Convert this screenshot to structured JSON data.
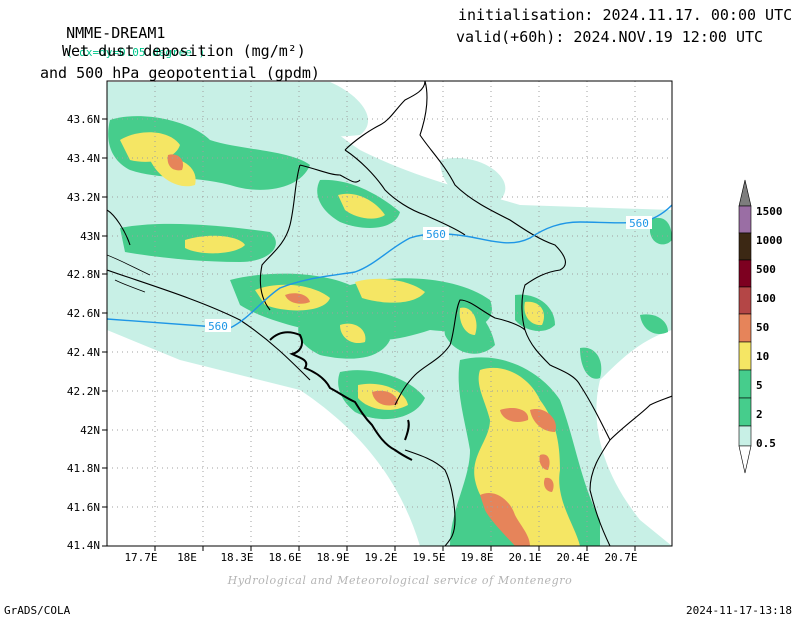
{
  "header": {
    "model": "NMME-DREAM1",
    "resolution": "( dx=dy=0.05 degree )",
    "title_line1": "Wet dust deposition (mg/m²)",
    "title_line2": "and 500 hPa geopotential (gpdm)",
    "init_label": "initialisation: 2024.11.17. 00:00 UTC",
    "valid_label": "valid(+60h): 2024.NOV.19 12:00 UTC"
  },
  "map": {
    "lon_ticks": [
      "17.7E",
      "18E",
      "18.3E",
      "18.6E",
      "18.9E",
      "19.2E",
      "19.5E",
      "19.8E",
      "20.1E",
      "20.4E",
      "20.7E"
    ],
    "lat_ticks": [
      "41.4N",
      "41.6N",
      "41.8N",
      "42N",
      "42.2N",
      "42.4N",
      "42.6N",
      "42.8N",
      "43N",
      "43.2N",
      "43.4N",
      "43.6N"
    ],
    "contour_labels": [
      "560",
      "560",
      "560"
    ],
    "colors": {
      "geopotential": "#1e96e6",
      "border": "#000000",
      "grid": "#a0a0a0"
    }
  },
  "legend": {
    "levels": [
      {
        "label": "1500",
        "color": "#7d7d7d"
      },
      {
        "label": "1000",
        "color": "#9a6ea4"
      },
      {
        "label": "500",
        "color": "#3c2814"
      },
      {
        "label": "100",
        "color": "#7d0020"
      },
      {
        "label": "50",
        "color": "#b44646"
      },
      {
        "label": "10",
        "color": "#e6845a"
      },
      {
        "label": "5",
        "color": "#f5e664"
      },
      {
        "label": "2",
        "color": "#46cd8c"
      },
      {
        "label": "0.5",
        "color": "#c8f0e6"
      }
    ]
  },
  "footer": {
    "credit": "Hydrological and Meteorological service of Montenegro",
    "software": "GrADS/COLA",
    "timestamp": "2024-11-17-13:18"
  }
}
